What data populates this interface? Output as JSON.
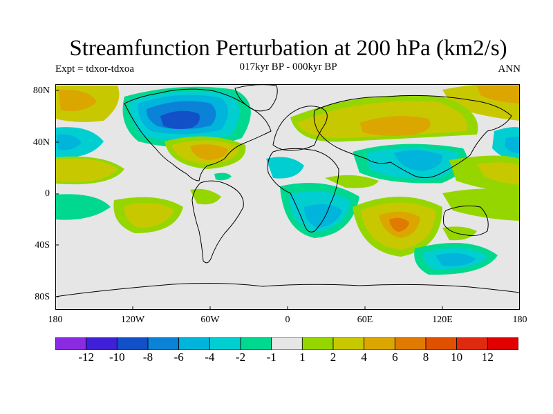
{
  "title": "Streamfunction Perturbation at 200 hPa (km2/s)",
  "experiment_label": "Expt = tdxor-tdxoa",
  "subtitle": "017kyr BP - 000kyr BP",
  "season": "ANN",
  "lat_labels": [
    "80N",
    "40N",
    "0",
    "40S",
    "80S"
  ],
  "lon_labels": [
    "180",
    "120W",
    "60W",
    "0",
    "60E",
    "120E",
    "180"
  ],
  "colorbar": {
    "labels": [
      "-12",
      "-10",
      "-8",
      "-6",
      "-4",
      "-2",
      "-1",
      "1",
      "2",
      "4",
      "6",
      "8",
      "10",
      "12"
    ],
    "colors": [
      "#8a2be2",
      "#3f20d8",
      "#1250c8",
      "#0a82d8",
      "#00b4dc",
      "#00ced0",
      "#00d890",
      "#e6e6e6",
      "#96d600",
      "#c8c800",
      "#dca600",
      "#e07a00",
      "#e05000",
      "#e02a10",
      "#e00000"
    ]
  },
  "map_data": {
    "lon_range": [
      -180,
      180
    ],
    "lat_range": [
      -90,
      90
    ],
    "background_color": "#e6e6e6",
    "features": [
      {
        "name": "north-america-low",
        "level": -8,
        "lon": -85,
        "lat": 55
      },
      {
        "name": "atlantic-high",
        "level": 6,
        "lon": -60,
        "lat": 32
      },
      {
        "name": "eurasia-high",
        "level": 6,
        "lon": 90,
        "lat": 50
      },
      {
        "name": "asia-low",
        "level": -4,
        "lon": 100,
        "lat": 25
      },
      {
        "name": "indian-ocean-high",
        "level": 6,
        "lon": 85,
        "lat": -22
      },
      {
        "name": "south-atlantic-low",
        "level": -4,
        "lon": 15,
        "lat": -25
      },
      {
        "name": "southern-ocean-low",
        "level": -4,
        "lon": 130,
        "lat": -48
      },
      {
        "name": "north-pacific-high",
        "level": 6,
        "lon": -165,
        "lat": 65
      },
      {
        "name": "east-pacific-low",
        "level": -4,
        "lon": -170,
        "lat": 38
      },
      {
        "name": "south-pacific-high",
        "level": 2,
        "lon": -100,
        "lat": -15
      }
    ]
  }
}
